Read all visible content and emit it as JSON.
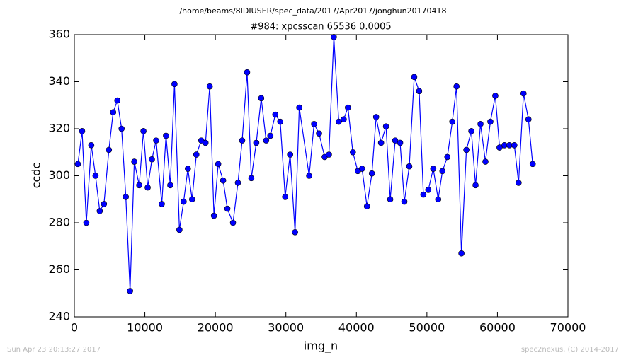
{
  "chart_data": {
    "type": "line",
    "suptitle": "/home/beams/8IDIUSER/spec_data/2017/Apr2017/jonghun20170418",
    "title": "#984: xpcsscan 65536 0.0005",
    "xlabel": "img_n",
    "ylabel": "ccdc",
    "footer_left": "Sun Apr 23 20:13:27 2017",
    "footer_right": "spec2nexus, (C) 2014-2017",
    "color": "#0000ff",
    "marker": "circle",
    "xlim": [
      0,
      70000
    ],
    "xticks": [
      0,
      10000,
      20000,
      30000,
      40000,
      50000,
      60000,
      70000
    ],
    "ylim": [
      240,
      360
    ],
    "yticks": [
      240,
      260,
      280,
      300,
      320,
      340,
      360
    ],
    "x": [
      500,
      1100,
      1700,
      2400,
      3000,
      3600,
      4200,
      4900,
      5500,
      6100,
      6700,
      7300,
      7900,
      8500,
      9200,
      9800,
      10400,
      11000,
      11600,
      12400,
      13000,
      13600,
      14200,
      14900,
      15500,
      16100,
      16700,
      17300,
      18000,
      18600,
      19200,
      19800,
      20400,
      21100,
      21700,
      22500,
      23200,
      23800,
      24500,
      25100,
      25800,
      26500,
      27200,
      27800,
      28500,
      29200,
      29900,
      30600,
      31300,
      31900,
      33300,
      34000,
      34700,
      35500,
      36100,
      36800,
      37500,
      38200,
      38800,
      39500,
      40200,
      40800,
      41500,
      42200,
      42800,
      43500,
      44200,
      44800,
      45500,
      46200,
      46800,
      47500,
      48200,
      48900,
      49500,
      50200,
      50900,
      51600,
      52200,
      52900,
      53600,
      54200,
      54900,
      55600,
      56300,
      56900,
      57600,
      58300,
      59000,
      59700,
      60300,
      61000,
      61700,
      62400,
      63000,
      63700,
      64400,
      65000
    ],
    "values": [
      305,
      319,
      280,
      313,
      300,
      285,
      288,
      311,
      327,
      332,
      320,
      291,
      251,
      306,
      296,
      319,
      295,
      307,
      315,
      288,
      317,
      296,
      339,
      277,
      289,
      303,
      290,
      309,
      315,
      314,
      338,
      283,
      305,
      298,
      286,
      280,
      297,
      315,
      344,
      299,
      314,
      333,
      315,
      317,
      326,
      323,
      291,
      309,
      276,
      329,
      300,
      322,
      318,
      308,
      309,
      359,
      323,
      324,
      329,
      310,
      302,
      303,
      287,
      301,
      325,
      314,
      321,
      290,
      315,
      314,
      289,
      304,
      342,
      336,
      292,
      294,
      303,
      290,
      302,
      308,
      323,
      338,
      267,
      311,
      319,
      296,
      322,
      306,
      323,
      334,
      312,
      313,
      313,
      313,
      297,
      335,
      324,
      305
    ]
  }
}
